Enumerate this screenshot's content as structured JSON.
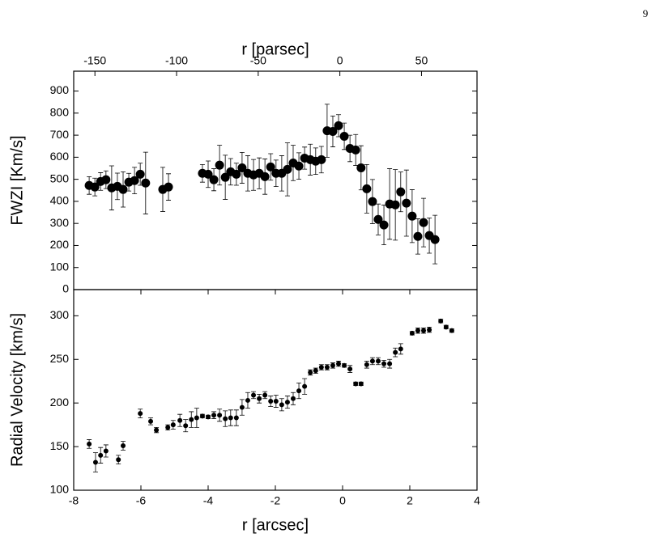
{
  "page_number": "9",
  "chart_data": [
    {
      "type": "scatter",
      "x2_label": "r [parsec]",
      "y_label": "FWZI [Km/s]",
      "color": "#000000",
      "marker_size": 5.5,
      "xlim": [
        -8,
        4
      ],
      "x2lim": [
        -163,
        84
      ],
      "x2ticks": [
        -150,
        -100,
        -50,
        0,
        50
      ],
      "ylim": [
        0,
        990
      ],
      "yticks": [
        0,
        100,
        200,
        300,
        400,
        500,
        600,
        700,
        800,
        900
      ],
      "x": [
        -7.54,
        -7.37,
        -7.2,
        -7.04,
        -6.87,
        -6.7,
        -6.53,
        -6.36,
        -6.19,
        -6.02,
        -5.86,
        -5.35,
        -5.18,
        -4.17,
        -4.0,
        -3.83,
        -3.66,
        -3.49,
        -3.33,
        -3.16,
        -2.99,
        -2.82,
        -2.65,
        -2.48,
        -2.31,
        -2.14,
        -1.98,
        -1.81,
        -1.64,
        -1.47,
        -1.3,
        -1.13,
        -0.96,
        -0.8,
        -0.63,
        -0.46,
        -0.29,
        -0.12,
        0.05,
        0.22,
        0.39,
        0.55,
        0.72,
        0.89,
        1.06,
        1.23,
        1.4,
        1.57,
        1.73,
        1.9,
        2.07,
        2.24,
        2.41,
        2.58,
        2.75
      ],
      "values": [
        472,
        465,
        490,
        498,
        461,
        468,
        454,
        487,
        494,
        523,
        483,
        454,
        465,
        527,
        523,
        498,
        564,
        509,
        534,
        523,
        552,
        527,
        520,
        527,
        512,
        556,
        527,
        527,
        545,
        574,
        560,
        596,
        589,
        582,
        589,
        720,
        717,
        743,
        695,
        640,
        633,
        552,
        457,
        399,
        318,
        293,
        388,
        384,
        443,
        392,
        333,
        241,
        304,
        245,
        227
      ],
      "errors": [
        40,
        40,
        40,
        40,
        100,
        60,
        80,
        40,
        60,
        50,
        140,
        100,
        60,
        40,
        60,
        50,
        90,
        100,
        60,
        50,
        70,
        80,
        70,
        70,
        80,
        60,
        60,
        80,
        120,
        80,
        60,
        50,
        70,
        60,
        60,
        120,
        70,
        50,
        60,
        60,
        70,
        100,
        110,
        100,
        70,
        90,
        160,
        160,
        90,
        150,
        120,
        80,
        110,
        80,
        110
      ]
    },
    {
      "type": "scatter",
      "x_label": "r [arcsec]",
      "y_label": "Radial Velocity [km/s]",
      "color": "#000000",
      "marker_size": 3,
      "xlim": [
        -8,
        4
      ],
      "xticks": [
        -8,
        -6,
        -4,
        -2,
        0,
        2,
        4
      ],
      "ylim": [
        100,
        330
      ],
      "yticks": [
        100,
        150,
        200,
        250,
        300
      ],
      "x": [
        -7.54,
        -7.35,
        -7.2,
        -7.04,
        -6.67,
        -6.53,
        -6.02,
        -5.71,
        -5.54,
        -5.2,
        -5.04,
        -4.84,
        -4.67,
        -4.5,
        -4.34,
        -4.17,
        -4.0,
        -3.83,
        -3.66,
        -3.49,
        -3.33,
        -3.16,
        -2.99,
        -2.82,
        -2.65,
        -2.48,
        -2.31,
        -2.14,
        -1.98,
        -1.81,
        -1.64,
        -1.47,
        -1.3,
        -1.13,
        -0.96,
        -0.8,
        -0.63,
        -0.46,
        -0.29,
        -0.12,
        0.05,
        0.22,
        0.39,
        0.55,
        0.72,
        0.89,
        1.06,
        1.23,
        1.4,
        1.57,
        1.73,
        2.07,
        2.24,
        2.41,
        2.58,
        2.92,
        3.08,
        3.25
      ],
      "values": [
        153,
        132,
        140,
        145,
        135,
        151,
        188,
        179,
        169,
        172,
        175,
        180,
        174,
        181,
        183,
        185,
        184,
        186,
        186,
        182,
        183,
        183,
        195,
        203,
        209,
        205,
        209,
        202,
        202,
        198,
        201,
        205,
        214,
        219,
        235,
        237,
        241,
        241,
        243,
        245,
        243,
        239,
        222,
        222,
        244,
        248,
        248,
        245,
        245,
        258,
        262,
        280,
        283,
        283,
        284,
        294,
        287,
        283
      ],
      "errors": [
        5,
        11,
        9,
        7,
        5,
        5,
        5,
        4,
        3,
        3,
        5,
        7,
        7,
        9,
        11,
        2,
        2,
        4,
        7,
        9,
        9,
        9,
        9,
        9,
        4,
        5,
        4,
        6,
        7,
        7,
        7,
        7,
        9,
        9,
        3,
        3,
        3,
        3,
        3,
        3,
        2,
        4,
        2,
        2,
        4,
        4,
        4,
        4,
        5,
        5,
        6,
        2,
        3,
        3,
        3,
        2,
        2,
        2
      ]
    }
  ]
}
